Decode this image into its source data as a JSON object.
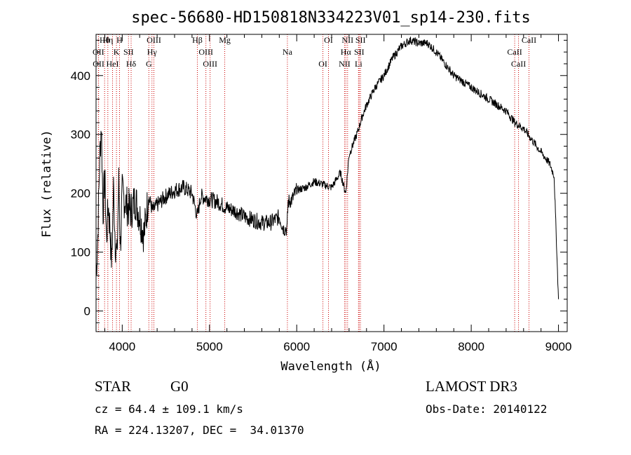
{
  "chart_data": {
    "type": "line",
    "title": "spec-56680-HD150818N334223V01_sp14-230.fits",
    "xlabel": "Wavelength (Å)",
    "ylabel": "Flux (relative)",
    "xlim": [
      3700,
      9100
    ],
    "ylim": [
      -35,
      470
    ],
    "xticks": [
      4000,
      5000,
      6000,
      7000,
      8000,
      9000
    ],
    "yticks": [
      0,
      100,
      200,
      300,
      400
    ],
    "grid": false,
    "legend": "none",
    "series": [
      {
        "name": "flux",
        "x": [
          3700,
          3720,
          3740,
          3760,
          3780,
          3800,
          3820,
          3840,
          3860,
          3880,
          3900,
          3920,
          3940,
          3960,
          3980,
          4000,
          4050,
          4100,
          4150,
          4200,
          4250,
          4300,
          4350,
          4400,
          4500,
          4600,
          4700,
          4800,
          4861,
          4900,
          5000,
          5100,
          5200,
          5300,
          5400,
          5500,
          5600,
          5700,
          5800,
          5850,
          5890,
          5900,
          5950,
          6000,
          6100,
          6200,
          6300,
          6400,
          6500,
          6562,
          6600,
          6650,
          6700,
          6750,
          6800,
          6900,
          7000,
          7100,
          7200,
          7300,
          7400,
          7500,
          7600,
          7700,
          7800,
          7900,
          8000,
          8100,
          8200,
          8300,
          8400,
          8500,
          8600,
          8700,
          8800,
          8900,
          8950,
          9000
        ],
        "y": [
          60,
          130,
          250,
          320,
          170,
          230,
          120,
          180,
          140,
          80,
          210,
          120,
          90,
          220,
          110,
          200,
          180,
          170,
          190,
          160,
          130,
          195,
          170,
          180,
          195,
          205,
          210,
          200,
          160,
          195,
          190,
          185,
          175,
          170,
          160,
          155,
          150,
          150,
          160,
          140,
          140,
          185,
          190,
          205,
          210,
          220,
          215,
          210,
          235,
          200,
          265,
          285,
          305,
          330,
          350,
          380,
          400,
          430,
          450,
          460,
          455,
          455,
          440,
          420,
          400,
          390,
          380,
          370,
          360,
          350,
          340,
          320,
          310,
          290,
          270,
          250,
          230,
          20
        ]
      }
    ],
    "annotations": {
      "lines": [
        {
          "label": "Hθ",
          "x": 3798
        },
        {
          "label": "OII",
          "x": 3727
        },
        {
          "label": "OII",
          "x": 3729
        },
        {
          "label": "Hη",
          "x": 3835
        },
        {
          "label": "K",
          "x": 3934
        },
        {
          "label": "HeI",
          "x": 3889
        },
        {
          "label": "H",
          "x": 3969
        },
        {
          "label": "SII",
          "x": 4072
        },
        {
          "label": "Hδ",
          "x": 4102
        },
        {
          "label": "OIII",
          "x": 4363
        },
        {
          "label": "Hγ",
          "x": 4341
        },
        {
          "label": "G",
          "x": 4305
        },
        {
          "label": "Hβ",
          "x": 4861
        },
        {
          "label": "OIII",
          "x": 4959
        },
        {
          "label": "OIII",
          "x": 5007
        },
        {
          "label": "Mg",
          "x": 5175
        },
        {
          "label": "Na",
          "x": 5893
        },
        {
          "label": "OI",
          "x": 6300
        },
        {
          "label": "OI",
          "x": 6364
        },
        {
          "label": "Hα",
          "x": 6563
        },
        {
          "label": "NII",
          "x": 6548
        },
        {
          "label": "NII",
          "x": 6583
        },
        {
          "label": "SII",
          "x": 6716
        },
        {
          "label": "Li",
          "x": 6708
        },
        {
          "label": "SII",
          "x": 6731
        },
        {
          "label": "CaII",
          "x": 8498
        },
        {
          "label": "CaII",
          "x": 8542
        },
        {
          "label": "CaII",
          "x": 8662
        }
      ]
    }
  },
  "info": {
    "class": "STAR",
    "subclass": "G0",
    "survey": "LAMOST DR3",
    "cz": "cz = 64.4 ± 109.1 km/s",
    "obsdate": "Obs-Date: 20140122",
    "radec": "RA = 224.13207, DEC =  34.01370"
  },
  "colors": {
    "line": "#000000",
    "marker": "#cc0000"
  }
}
